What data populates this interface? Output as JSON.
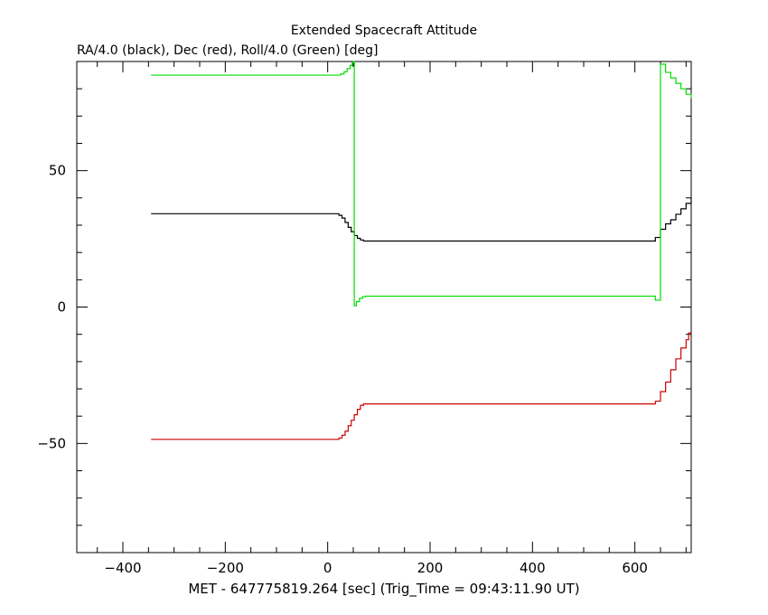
{
  "chart_data": {
    "type": "line",
    "title": "Extended Spacecraft Attitude",
    "ylabel": "RA/4.0 (black), Dec (red), Roll/4.0 (Green) [deg]",
    "xlabel": "MET - 647775819.264 [sec] (Trig_Time = 09:43:11.90 UT)",
    "xlim": [
      -490,
      710
    ],
    "ylim": [
      -90,
      90
    ],
    "xticks": [
      -400,
      -200,
      0,
      200,
      400,
      600
    ],
    "xtick_labels": [
      "−400",
      "−200",
      "0",
      "200",
      "400",
      "600"
    ],
    "yticks": [
      -50,
      0,
      50
    ],
    "ytick_labels": [
      "−50",
      "0",
      "50"
    ],
    "grid": false,
    "series": [
      {
        "color": "#000000",
        "x": [
          -345,
          15,
          22,
          28,
          34,
          40,
          46,
          52,
          58,
          64,
          70,
          630,
          640,
          650,
          660,
          670,
          680,
          690,
          700,
          710
        ],
        "y": [
          34.2,
          34.2,
          33.6,
          32.6,
          31.0,
          29.2,
          27.6,
          26.2,
          25.2,
          24.6,
          24.2,
          24.2,
          25.5,
          28.5,
          30.5,
          32.0,
          34.0,
          36.0,
          38.0,
          40.0
        ],
        "step": true
      },
      {
        "color": "#cc0000",
        "x": [
          -345,
          15,
          22,
          28,
          34,
          40,
          46,
          52,
          58,
          64,
          70,
          630,
          640,
          650,
          660,
          670,
          680,
          690,
          700,
          705,
          710
        ],
        "y": [
          -48.5,
          -48.5,
          -48.0,
          -47.0,
          -45.5,
          -43.5,
          -41.5,
          -39.5,
          -37.5,
          -36.0,
          -35.5,
          -35.5,
          -34.5,
          -31.0,
          -27.5,
          -23.0,
          -19.0,
          -15.0,
          -12.0,
          -9.5,
          -9.5
        ],
        "step": true
      },
      {
        "color": "#00dd00",
        "x": [
          -345,
          15,
          25,
          32,
          38,
          44,
          48,
          50,
          52,
          56,
          62,
          68,
          74,
          80,
          630,
          640,
          650,
          650,
          660,
          670,
          680,
          690,
          700,
          710
        ],
        "y": [
          85.0,
          85.0,
          85.4,
          86.2,
          87.4,
          88.6,
          89.6,
          90.0,
          0.5,
          2.0,
          3.2,
          3.8,
          4.0,
          4.0,
          4.0,
          2.5,
          2.5,
          89.0,
          86.0,
          84.0,
          82.0,
          80.0,
          78.0,
          76.5
        ],
        "step": true
      }
    ]
  }
}
